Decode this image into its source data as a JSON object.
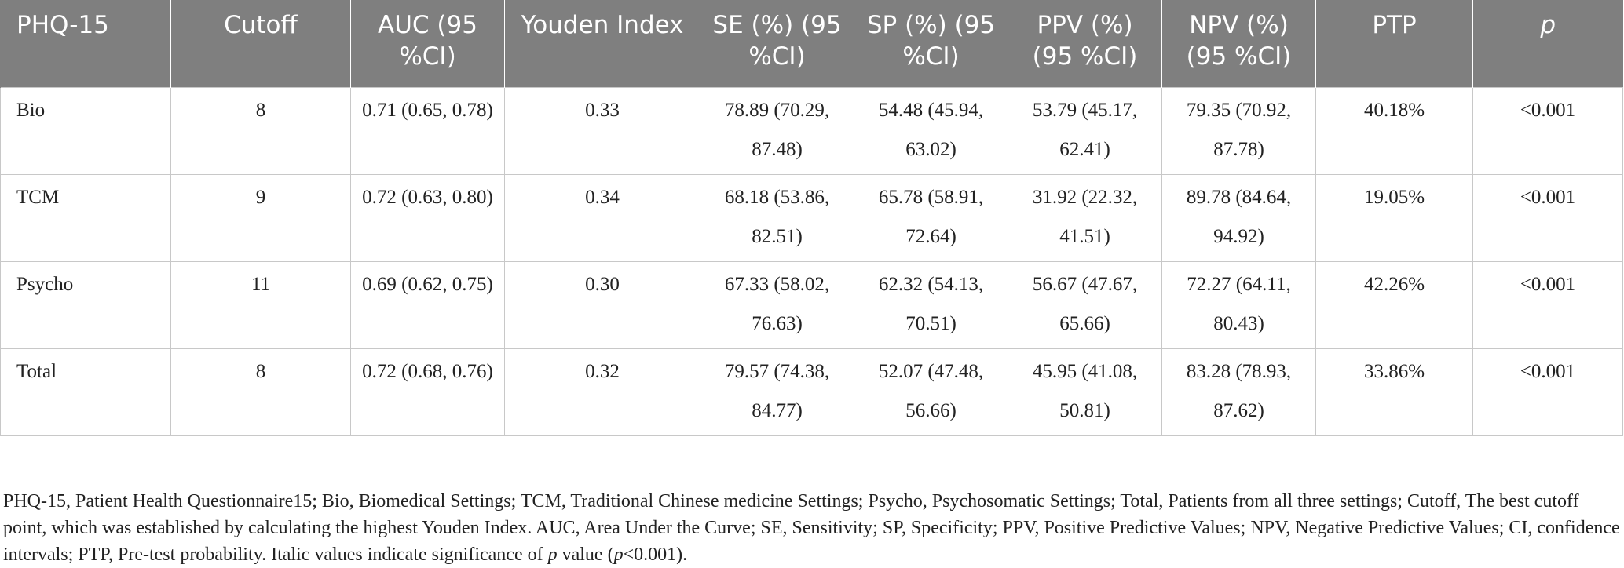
{
  "table": {
    "headers": [
      "PHQ-15",
      "Cutoff",
      "AUC (95 %CI)",
      "Youden Index",
      "SE (%) (95 %CI)",
      "SP (%) (95 %CI)",
      "PPV (%) (95 %CI)",
      "NPV (%) (95 %CI)",
      "PTP",
      "p"
    ],
    "rows": [
      [
        "Bio",
        "8",
        "0.71 (0.65, 0.78)",
        "0.33",
        "78.89 (70.29, 87.48)",
        "54.48 (45.94, 63.02)",
        "53.79 (45.17, 62.41)",
        "79.35 (70.92, 87.78)",
        "40.18%",
        "<0.001"
      ],
      [
        "TCM",
        "9",
        "0.72 (0.63, 0.80)",
        "0.34",
        "68.18 (53.86, 82.51)",
        "65.78 (58.91, 72.64)",
        "31.92 (22.32, 41.51)",
        "89.78 (84.64, 94.92)",
        "19.05%",
        "<0.001"
      ],
      [
        "Psycho",
        "11",
        "0.69 (0.62, 0.75)",
        "0.30",
        "67.33 (58.02, 76.63)",
        "62.32 (54.13, 70.51)",
        "56.67 (47.67, 65.66)",
        "72.27 (64.11, 80.43)",
        "42.26%",
        "<0.001"
      ],
      [
        "Total",
        "8",
        "0.72 (0.68, 0.76)",
        "0.32",
        "79.57 (74.38, 84.77)",
        "52.07 (47.48, 56.66)",
        "45.95 (41.08, 50.81)",
        "83.28 (78.93, 87.62)",
        "33.86%",
        "<0.001"
      ]
    ]
  },
  "footnote": {
    "main": "PHQ-15, Patient Health Questionnaire15; Bio, Biomedical Settings; TCM, Traditional Chinese medicine Settings; Psycho, Psychosomatic Settings; Total, Patients from all three settings; Cutoff, The best cutoff point, which was established by calculating the highest Youden Index. AUC, Area Under the Curve; SE, Sensitivity; SP, Specificity; PPV, Positive Predictive Values; NPV, Negative Predictive Values; CI, confidence intervals; PTP, Pre-test probability. Italic values indicate significance of ",
    "p_symbol": "p",
    "mid": " value (",
    "p_symbol_2": "p",
    "end": "<0.001)."
  },
  "colors": {
    "header_bg": "#7f7f7f",
    "header_text": "#ffffff",
    "grid": "#c8c8c8",
    "body_text": "#222222"
  }
}
